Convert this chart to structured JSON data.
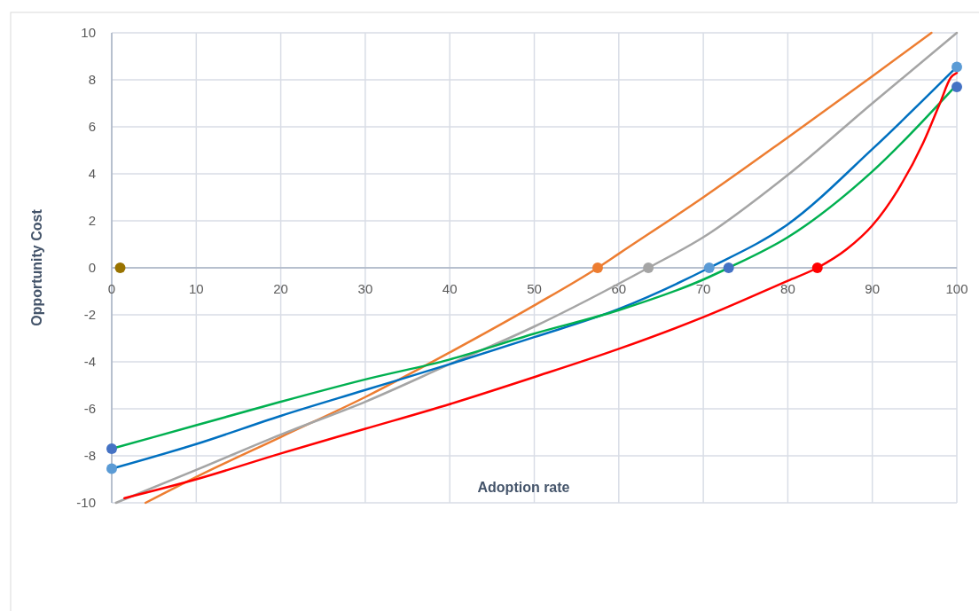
{
  "chart_data": {
    "type": "line",
    "xlabel": "Adoption rate",
    "ylabel": "Opportunity Cost",
    "xlim": [
      0,
      100
    ],
    "ylim": [
      -10,
      10
    ],
    "xticks": [
      0,
      10,
      20,
      30,
      40,
      50,
      60,
      70,
      80,
      90,
      100
    ],
    "yticks": [
      -10,
      -8,
      -6,
      -4,
      -2,
      0,
      2,
      4,
      6,
      8,
      10
    ],
    "grid": true,
    "series": [
      {
        "color": "#ed7d31",
        "x": [
          4,
          10,
          20,
          30,
          40,
          50,
          57.5,
          60,
          70,
          80,
          90,
          97
        ],
        "values": [
          -10,
          -8.9,
          -7.2,
          -5.5,
          -3.6,
          -1.6,
          0,
          0.6,
          3.0,
          5.55,
          8.15,
          10
        ]
      },
      {
        "color": "#a5a5a5",
        "x": [
          0.5,
          10,
          20,
          30,
          40,
          50,
          63.5,
          70,
          80,
          90,
          100
        ],
        "values": [
          -10,
          -8.6,
          -7.1,
          -5.7,
          -4.1,
          -2.5,
          0,
          1.3,
          3.95,
          7.0,
          10
        ]
      },
      {
        "color": "#0070c0",
        "x": [
          0,
          10,
          20,
          30,
          40,
          50,
          60,
          70.7,
          80,
          90,
          100
        ],
        "values": [
          -8.55,
          -7.5,
          -6.3,
          -5.2,
          -4.1,
          -2.95,
          -1.75,
          0,
          1.85,
          5.05,
          8.55
        ]
      },
      {
        "color": "#00b050",
        "x": [
          0,
          10,
          20,
          30,
          40,
          50,
          60,
          70,
          73,
          80,
          90,
          100
        ],
        "values": [
          -7.7,
          -6.7,
          -5.7,
          -4.75,
          -3.9,
          -2.8,
          -1.8,
          -0.5,
          0,
          1.3,
          4.1,
          7.8
        ]
      },
      {
        "color": "#ff0000",
        "x": [
          1.5,
          10,
          20,
          30,
          40,
          50,
          60,
          70,
          80,
          83.5,
          87,
          90,
          93,
          96,
          98,
          99.3,
          100
        ],
        "values": [
          -9.8,
          -9.0,
          -7.9,
          -6.85,
          -5.8,
          -4.65,
          -3.45,
          -2.1,
          -0.55,
          0,
          0.8,
          1.8,
          3.3,
          5.3,
          7.0,
          8.1,
          8.3
        ]
      },
      {
        "type": "scatter",
        "color": "#997300",
        "x": [
          1
        ],
        "values": [
          0
        ]
      },
      {
        "type": "scatter",
        "color": "#ed7d31",
        "x": [
          57.5
        ],
        "values": [
          0
        ]
      },
      {
        "type": "scatter",
        "color": "#a5a5a5",
        "x": [
          63.5
        ],
        "values": [
          0
        ]
      },
      {
        "type": "scatter",
        "color": "#5b9bd5",
        "x": [
          70.7,
          0,
          100
        ],
        "values": [
          0,
          -8.55,
          8.55
        ]
      },
      {
        "type": "scatter",
        "color": "#4472c4",
        "x": [
          73,
          0,
          100
        ],
        "values": [
          0,
          -7.7,
          7.7
        ]
      },
      {
        "type": "scatter",
        "color": "#ff0000",
        "x": [
          83.5
        ],
        "values": [
          0
        ]
      }
    ]
  }
}
